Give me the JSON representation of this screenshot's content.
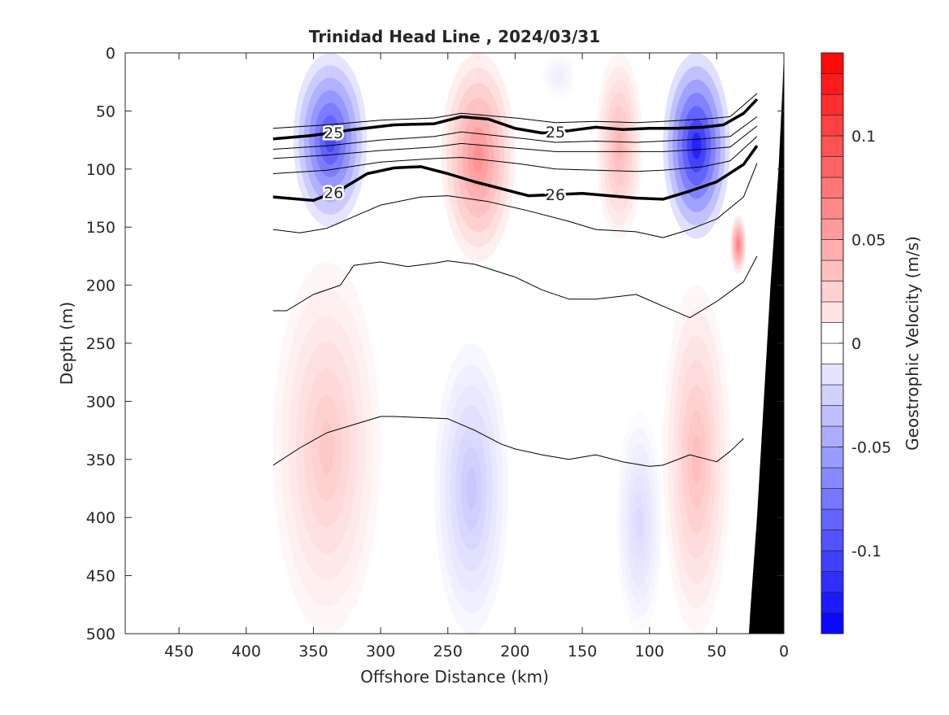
{
  "chart_data": {
    "type": "heatmap",
    "title": "Trinidad Head Line , 2024/03/31",
    "xlabel": "Offshore Distance (km)",
    "ylabel": "Depth (m)",
    "colorbar_label": "Geostrophic Velocity (m/s)",
    "xlim": [
      490,
      0
    ],
    "ylim": [
      500,
      0
    ],
    "x_reversed": true,
    "y_reversed": true,
    "x_ticks": [
      450,
      400,
      350,
      300,
      250,
      200,
      150,
      100,
      50,
      0
    ],
    "y_ticks": [
      0,
      50,
      100,
      150,
      200,
      250,
      300,
      350,
      400,
      450,
      500
    ],
    "colorbar": {
      "range": [
        -0.14,
        0.14
      ],
      "step": 0.01,
      "ticks": [
        0.1,
        0.05,
        0,
        -0.05,
        -0.1
      ],
      "tick_labels": [
        "0.1",
        "0.05",
        "0",
        "-0.05",
        "-0.1"
      ],
      "neg_color": "#0000ff",
      "pos_color": "#ff0000",
      "mid_color": "#ffffff"
    },
    "velocity_cores": [
      {
        "x_range": [
          365,
          310
        ],
        "depth_range": [
          0,
          150
        ],
        "v": -0.1
      },
      {
        "x_range": [
          255,
          200
        ],
        "depth_range": [
          0,
          180
        ],
        "v": 0.06
      },
      {
        "x_range": [
          140,
          105
        ],
        "depth_range": [
          0,
          160
        ],
        "v": 0.04
      },
      {
        "x_range": [
          180,
          155
        ],
        "depth_range": [
          0,
          40
        ],
        "v": -0.01
      },
      {
        "x_range": [
          90,
          40
        ],
        "depth_range": [
          0,
          160
        ],
        "v": -0.12
      },
      {
        "x_range": [
          40,
          28
        ],
        "depth_range": [
          140,
          190
        ],
        "v": 0.07
      },
      {
        "x_range": [
          380,
          300
        ],
        "depth_range": [
          180,
          500
        ],
        "v": 0.03
      },
      {
        "x_range": [
          260,
          205
        ],
        "depth_range": [
          250,
          500
        ],
        "v": -0.03
      },
      {
        "x_range": [
          125,
          90
        ],
        "depth_range": [
          310,
          500
        ],
        "v": -0.02
      },
      {
        "x_range": [
          90,
          40
        ],
        "depth_range": [
          200,
          500
        ],
        "v": 0.035
      }
    ],
    "isopycnals": [
      {
        "level": 25,
        "labeled": true,
        "x": [
          380,
          350,
          320,
          290,
          260,
          240,
          220,
          200,
          180,
          160,
          140,
          120,
          100,
          80,
          60,
          45,
          30,
          20
        ],
        "depth": [
          74,
          71,
          66,
          62,
          61,
          55,
          57,
          65,
          69,
          67,
          64,
          66,
          65,
          65,
          64,
          62,
          52,
          40
        ]
      },
      {
        "level": 26,
        "labeled": true,
        "x": [
          380,
          350,
          330,
          310,
          290,
          270,
          250,
          230,
          210,
          190,
          170,
          150,
          130,
          110,
          90,
          70,
          50,
          30,
          20
        ],
        "depth": [
          124,
          127,
          118,
          104,
          99,
          98,
          104,
          111,
          117,
          123,
          122,
          121,
          123,
          125,
          126,
          119,
          111,
          96,
          80
        ]
      },
      {
        "level": null,
        "labeled": false,
        "x": [
          380,
          340,
          300,
          260,
          240,
          200,
          170,
          140,
          110,
          90,
          60,
          40,
          20
        ],
        "depth": [
          65,
          62,
          58,
          56,
          52,
          56,
          60,
          59,
          60,
          59,
          57,
          55,
          35
        ]
      },
      {
        "level": null,
        "labeled": false,
        "x": [
          380,
          340,
          300,
          260,
          240,
          200,
          170,
          140,
          110,
          90,
          60,
          40,
          20
        ],
        "depth": [
          83,
          80,
          75,
          72,
          68,
          73,
          77,
          76,
          77,
          76,
          74,
          72,
          55
        ]
      },
      {
        "level": null,
        "labeled": false,
        "x": [
          380,
          340,
          300,
          260,
          240,
          200,
          170,
          140,
          110,
          90,
          60,
          40,
          20
        ],
        "depth": [
          91,
          88,
          84,
          81,
          78,
          82,
          85,
          85,
          85,
          85,
          83,
          81,
          63
        ]
      },
      {
        "level": null,
        "labeled": false,
        "x": [
          380,
          340,
          300,
          260,
          240,
          200,
          170,
          140,
          110,
          90,
          60,
          40,
          20
        ],
        "depth": [
          104,
          101,
          94,
          91,
          90,
          95,
          100,
          101,
          102,
          101,
          98,
          93,
          72
        ]
      },
      {
        "level": null,
        "labeled": false,
        "x": [
          380,
          360,
          340,
          320,
          300,
          270,
          250,
          220,
          190,
          160,
          140,
          110,
          90,
          70,
          50,
          30,
          20
        ],
        "depth": [
          152,
          155,
          151,
          141,
          131,
          124,
          123,
          128,
          136,
          145,
          152,
          154,
          159,
          152,
          143,
          124,
          95
        ]
      },
      {
        "level": null,
        "labeled": false,
        "x": [
          380,
          370,
          350,
          330,
          320,
          300,
          280,
          260,
          250,
          230,
          200,
          180,
          160,
          140,
          110,
          90,
          70,
          50,
          30,
          20
        ],
        "depth": [
          222,
          222,
          208,
          200,
          183,
          180,
          184,
          181,
          179,
          182,
          193,
          204,
          212,
          212,
          208,
          218,
          228,
          214,
          197,
          175
        ]
      },
      {
        "level": null,
        "labeled": false,
        "x": [
          380,
          360,
          340,
          320,
          300,
          290,
          270,
          250,
          230,
          210,
          200,
          180,
          160,
          140,
          120,
          100,
          90,
          70,
          50,
          40,
          30
        ],
        "depth": [
          355,
          340,
          327,
          320,
          313,
          313,
          314,
          315,
          325,
          337,
          341,
          346,
          350,
          346,
          352,
          356,
          355,
          346,
          352,
          343,
          332
        ]
      }
    ],
    "bathymetry": {
      "color": "#000000",
      "x": [
        0,
        1,
        4,
        10,
        15,
        20,
        25,
        26,
        0
      ],
      "depth": [
        0,
        30,
        100,
        200,
        300,
        400,
        480,
        500,
        500
      ]
    }
  }
}
